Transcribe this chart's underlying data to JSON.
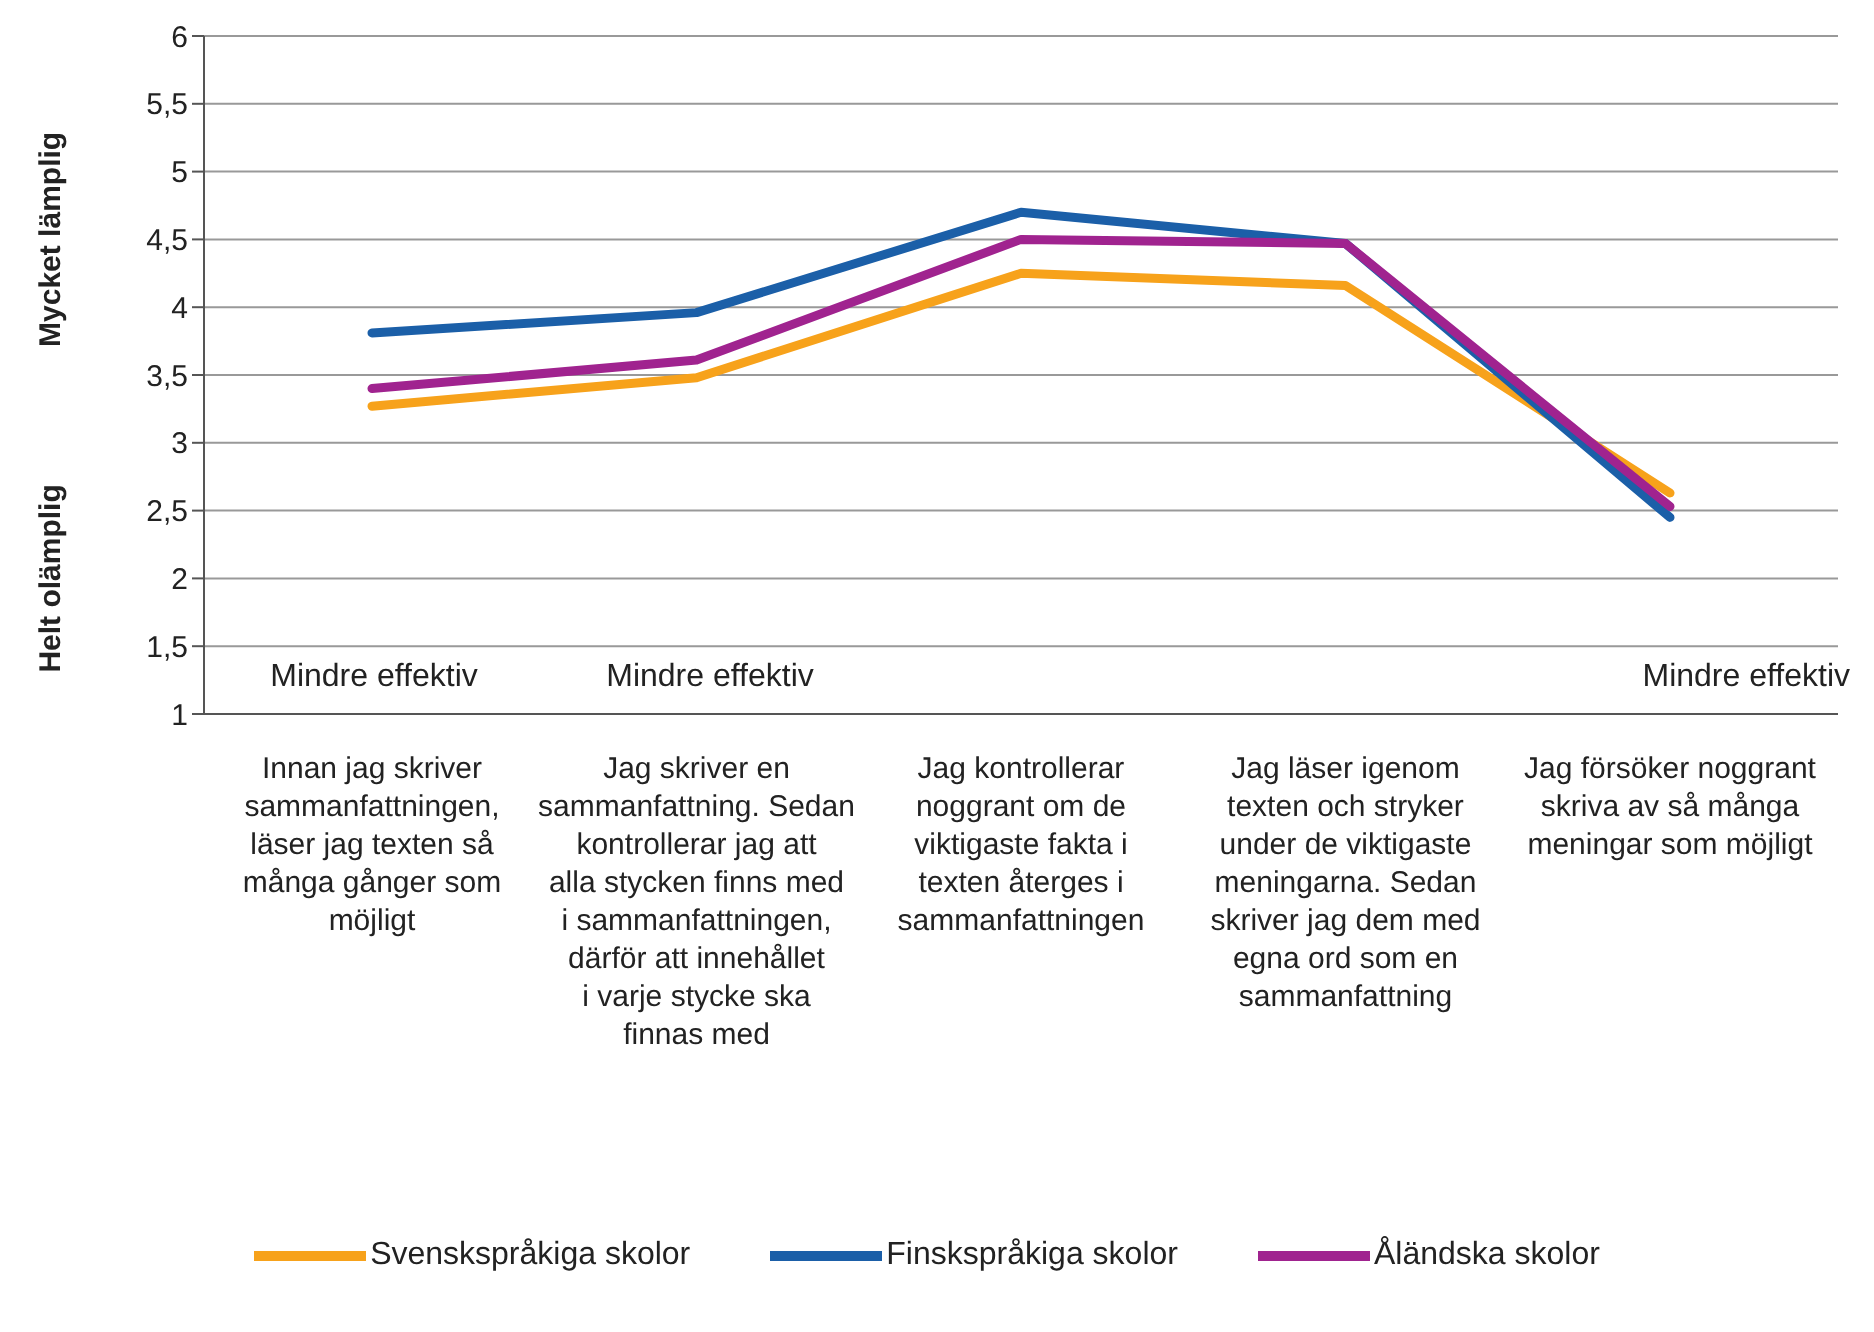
{
  "chart_data": {
    "type": "line",
    "categories": [
      "Innan jag skriver sammanfattningen, läser jag texten så många gånger som möjligt",
      "Jag skriver en sammanfattning. Sedan kontrollerar jag att alla stycken finns med i sammanfattningen, därför att innehållet i varje stycke ska finnas med",
      "Jag kontrollerar noggrant om de viktigaste fakta i texten återges i sammanfattningen",
      "Jag läser igenom texten och stryker under de viktigaste meningarna. Sedan skriver jag dem med egna ord som en sammanfattning",
      "Jag försöker noggrant skriva av så många meningar som möjligt"
    ],
    "series": [
      {
        "name": "Svenskspråkiga skolor",
        "color": "#f7a21b",
        "values": [
          3.27,
          3.48,
          4.25,
          4.16,
          2.63
        ]
      },
      {
        "name": "Finskspråkiga skolor",
        "color": "#1b5fa8",
        "values": [
          3.81,
          3.96,
          4.7,
          4.47,
          2.45
        ]
      },
      {
        "name": "Åländska skolor",
        "color": "#a0238f",
        "values": [
          3.4,
          3.61,
          4.5,
          4.47,
          2.53
        ]
      }
    ],
    "ylim": [
      1,
      6
    ],
    "yticks": [
      1,
      {
        "value": 1.5,
        "label": "1,5"
      },
      2,
      {
        "value": 2.5,
        "label": "2,5"
      },
      3,
      {
        "value": 3.5,
        "label": "3,5"
      },
      4,
      {
        "value": 4.5,
        "label": "4,5"
      },
      5,
      {
        "value": 5.5,
        "label": "5,5"
      },
      6
    ],
    "grid": "y",
    "legend": "bottom",
    "marker": "none",
    "line_style": "solid",
    "annotations": [
      "Mycket lämplig",
      "Helt olämplig",
      "Mindre effektiv",
      "Mindre effektiv",
      "Mindre effektiv"
    ]
  }
}
